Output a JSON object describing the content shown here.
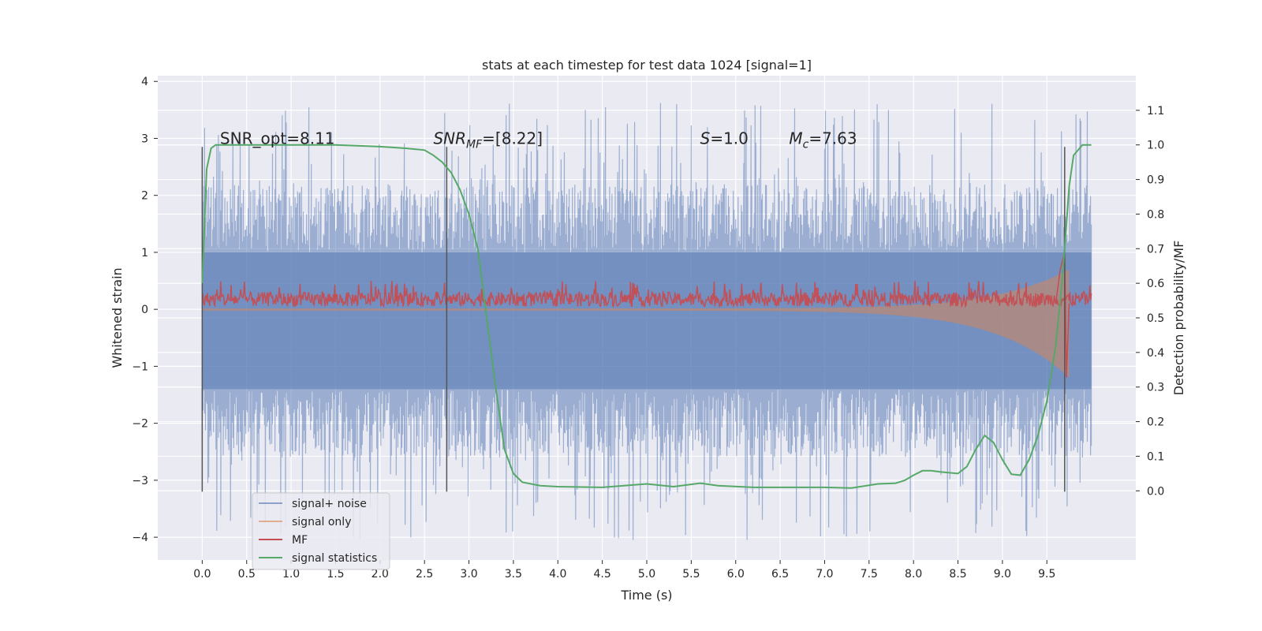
{
  "chart_data": {
    "type": "line",
    "title": "stats at each timestep for test data 1024 [signal=1]",
    "xlabel": "Time (s)",
    "ylabel_left": "Whitened strain",
    "ylabel_right": "Detection probability/MF",
    "xlim": [
      -0.5,
      10.5
    ],
    "ylim_left": [
      -4.4,
      4.1
    ],
    "ylim_right": [
      -0.2,
      1.2
    ],
    "xticks": [
      0.0,
      0.5,
      1.0,
      1.5,
      2.0,
      2.5,
      3.0,
      3.5,
      4.0,
      4.5,
      5.0,
      5.5,
      6.0,
      6.5,
      7.0,
      7.5,
      8.0,
      8.5,
      9.0,
      9.5
    ],
    "xtick_labels": [
      "0.0",
      "0.5",
      "1.0",
      "1.5",
      "2.0",
      "2.5",
      "3.0",
      "3.5",
      "4.0",
      "4.5",
      "5.0",
      "5.5",
      "6.0",
      "6.5",
      "7.0",
      "7.5",
      "8.0",
      "8.5",
      "9.0",
      "9.5"
    ],
    "yticks_left": [
      4,
      3,
      2,
      1,
      0,
      -1,
      -2,
      -3,
      -4
    ],
    "ytick_labels_left": [
      "4",
      "3",
      "2",
      "1",
      "0",
      "−1",
      "−2",
      "−3",
      "−4"
    ],
    "yticks_right": [
      1.1,
      1.0,
      0.9,
      0.8,
      0.7,
      0.6,
      0.5,
      0.4,
      0.3,
      0.2,
      0.1,
      0.0
    ],
    "ytick_labels_right": [
      "1.1",
      "1.0",
      "0.9",
      "0.8",
      "0.7",
      "0.6",
      "0.5",
      "0.4",
      "0.3",
      "0.2",
      "0.1",
      "0.0"
    ],
    "grid": true,
    "legend_position": "lower-left",
    "vlines_x": [
      0.0,
      2.75,
      9.7
    ],
    "vline_range_left": [
      -3.2,
      2.85
    ],
    "annotations": [
      {
        "text": "SNR_opt=8.11",
        "x": 0.2,
        "y": 3.0
      },
      {
        "text": "SNR_MF=[8.22]",
        "main": "SNR",
        "sub": "MF",
        "rest": "=[8.22]",
        "x": 2.6,
        "y": 3.0
      },
      {
        "text": "S=1.0",
        "main": "S",
        "sub": "",
        "rest": "=1.0",
        "x": 5.6,
        "y": 3.0
      },
      {
        "text": "M_c=7.63",
        "main": "M",
        "sub": "c",
        "rest": "=7.63",
        "x": 6.6,
        "y": 3.0
      }
    ],
    "series": [
      {
        "name": "signal+ noise",
        "color": "#4c72b0",
        "opacity": 0.5,
        "axis": "left",
        "x_range": [
          0.0,
          10.0
        ],
        "band_hi": 1.0,
        "band_lo": -1.4,
        "peak_max": 3.65,
        "peak_min": -4.05
      },
      {
        "name": "signal only",
        "color": "#dd8452",
        "opacity": 0.5,
        "axis": "left",
        "x_range": [
          0.0,
          9.75
        ],
        "chirp_amp_start": 0.02,
        "chirp_amp_end": 1.0
      },
      {
        "name": "MF",
        "color": "#c44e52",
        "axis": "left",
        "x_range": [
          0.0,
          10.0
        ],
        "level_lo": 0.05,
        "level_hi": 0.3
      },
      {
        "name": "signal statistics",
        "color": "#55a868",
        "axis": "right",
        "x": [
          0.0,
          0.05,
          0.1,
          0.15,
          0.2,
          0.3,
          0.5,
          1.0,
          1.5,
          2.0,
          2.3,
          2.5,
          2.6,
          2.7,
          2.8,
          2.9,
          3.0,
          3.1,
          3.2,
          3.3,
          3.4,
          3.5,
          3.6,
          3.8,
          4.0,
          4.5,
          5.0,
          5.3,
          5.6,
          5.8,
          6.2,
          6.6,
          7.0,
          7.3,
          7.6,
          7.8,
          7.9,
          8.0,
          8.1,
          8.2,
          8.3,
          8.5,
          8.6,
          8.7,
          8.8,
          8.9,
          9.0,
          9.1,
          9.2,
          9.3,
          9.4,
          9.5,
          9.6,
          9.65,
          9.7,
          9.75,
          9.8,
          9.9,
          10.0
        ],
        "y": [
          0.6,
          0.93,
          0.99,
          1.0,
          1.0,
          1.0,
          1.0,
          1.0,
          1.0,
          0.995,
          0.99,
          0.985,
          0.97,
          0.95,
          0.92,
          0.87,
          0.8,
          0.7,
          0.5,
          0.3,
          0.12,
          0.05,
          0.025,
          0.015,
          0.012,
          0.01,
          0.02,
          0.012,
          0.022,
          0.015,
          0.01,
          0.01,
          0.01,
          0.008,
          0.02,
          0.022,
          0.03,
          0.045,
          0.058,
          0.058,
          0.055,
          0.05,
          0.07,
          0.12,
          0.16,
          0.14,
          0.09,
          0.048,
          0.045,
          0.09,
          0.16,
          0.26,
          0.42,
          0.55,
          0.7,
          0.88,
          0.97,
          1.0,
          1.0
        ]
      }
    ]
  }
}
